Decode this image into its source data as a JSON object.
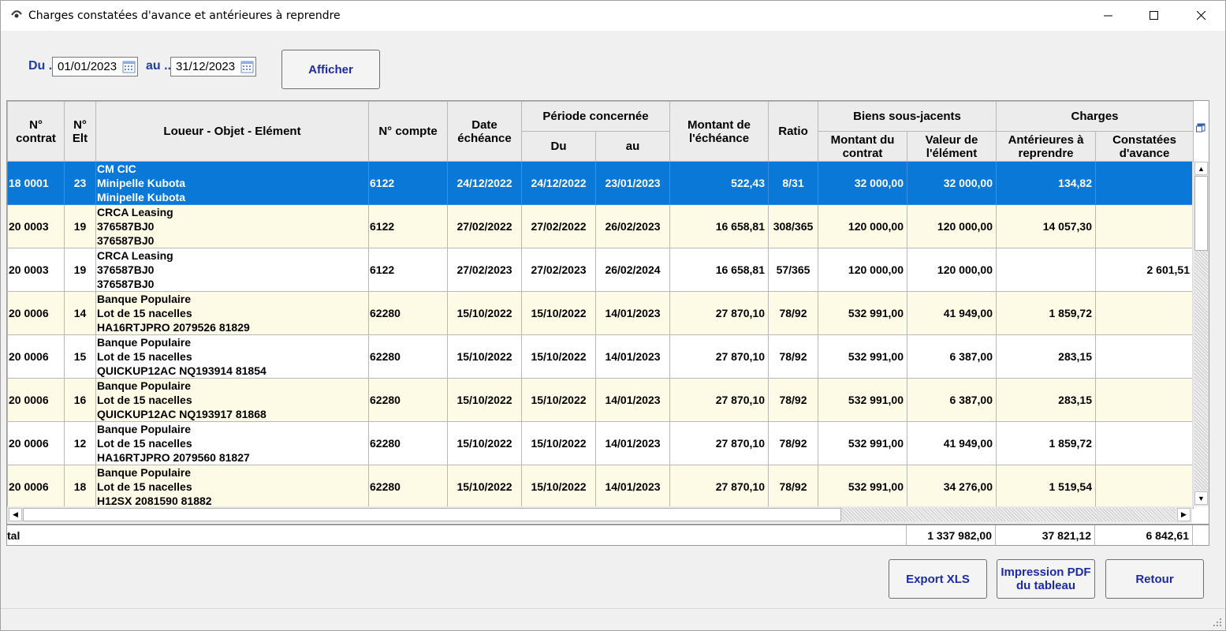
{
  "window": {
    "title": "Charges constatées d'avance et antérieures à reprendre"
  },
  "filters": {
    "du_label": "Du",
    "au_label": "au",
    "date_from": "01/01/2023",
    "date_to": "31/12/2023",
    "show_button": "Afficher"
  },
  "table": {
    "headers": {
      "contrat": "N° contrat",
      "elt": "N° Elt",
      "loueur": "Loueur - Objet - Elément",
      "compte": "N° compte",
      "date_echeance": "Date échéance",
      "periode_group": "Période concernée",
      "periode_du": "Du",
      "periode_au": "au",
      "montant_echeance": "Montant de l'échéance",
      "ratio": "Ratio",
      "biens_group": "Biens sous-jacents",
      "montant_contrat": "Montant du contrat",
      "valeur_element": "Valeur de l'élément",
      "charges_group": "Charges",
      "anterieures": "Antérieures à reprendre",
      "constatees": "Constatées d'avance"
    },
    "rows": [
      {
        "contrat": "18 0001",
        "elt": "23",
        "l1": "CM CIC",
        "l2": "Minipelle Kubota",
        "l3": "Minipelle Kubota",
        "compte": "6122",
        "date": "24/12/2022",
        "du": "24/12/2022",
        "au": "23/01/2023",
        "montant": "522,43",
        "ratio": "8/31",
        "mcontrat": "32 000,00",
        "valeur": "32 000,00",
        "ant": "134,82",
        "cons": ""
      },
      {
        "contrat": "20 0003",
        "elt": "19",
        "l1": "CRCA Leasing",
        "l2": "376587BJ0",
        "l3": "376587BJ0",
        "compte": "6122",
        "date": "27/02/2022",
        "du": "27/02/2022",
        "au": "26/02/2023",
        "montant": "16 658,81",
        "ratio": "308/365",
        "mcontrat": "120 000,00",
        "valeur": "120 000,00",
        "ant": "14 057,30",
        "cons": ""
      },
      {
        "contrat": "20 0003",
        "elt": "19",
        "l1": "CRCA Leasing",
        "l2": "376587BJ0",
        "l3": "376587BJ0",
        "compte": "6122",
        "date": "27/02/2023",
        "du": "27/02/2023",
        "au": "26/02/2024",
        "montant": "16 658,81",
        "ratio": "57/365",
        "mcontrat": "120 000,00",
        "valeur": "120 000,00",
        "ant": "",
        "cons": "2 601,51"
      },
      {
        "contrat": "20 0006",
        "elt": "14",
        "l1": "Banque Populaire",
        "l2": "Lot de 15 nacelles",
        "l3": "HA16RTJPRO 2079526 81829",
        "compte": "62280",
        "date": "15/10/2022",
        "du": "15/10/2022",
        "au": "14/01/2023",
        "montant": "27 870,10",
        "ratio": "78/92",
        "mcontrat": "532 991,00",
        "valeur": "41 949,00",
        "ant": "1 859,72",
        "cons": ""
      },
      {
        "contrat": "20 0006",
        "elt": "15",
        "l1": "Banque Populaire",
        "l2": "Lot de 15 nacelles",
        "l3": "QUICKUP12AC NQ193914 81854",
        "compte": "62280",
        "date": "15/10/2022",
        "du": "15/10/2022",
        "au": "14/01/2023",
        "montant": "27 870,10",
        "ratio": "78/92",
        "mcontrat": "532 991,00",
        "valeur": "6 387,00",
        "ant": "283,15",
        "cons": ""
      },
      {
        "contrat": "20 0006",
        "elt": "16",
        "l1": "Banque Populaire",
        "l2": "Lot de 15 nacelles",
        "l3": "QUICKUP12AC NQ193917 81868",
        "compte": "62280",
        "date": "15/10/2022",
        "du": "15/10/2022",
        "au": "14/01/2023",
        "montant": "27 870,10",
        "ratio": "78/92",
        "mcontrat": "532 991,00",
        "valeur": "6 387,00",
        "ant": "283,15",
        "cons": ""
      },
      {
        "contrat": "20 0006",
        "elt": "12",
        "l1": "Banque Populaire",
        "l2": "Lot de 15 nacelles",
        "l3": "HA16RTJPRO 2079560 81827",
        "compte": "62280",
        "date": "15/10/2022",
        "du": "15/10/2022",
        "au": "14/01/2023",
        "montant": "27 870,10",
        "ratio": "78/92",
        "mcontrat": "532 991,00",
        "valeur": "41 949,00",
        "ant": "1 859,72",
        "cons": ""
      },
      {
        "contrat": "20 0006",
        "elt": "18",
        "l1": "Banque Populaire",
        "l2": "Lot de 15 nacelles",
        "l3": "H12SX 2081590 81882",
        "compte": "62280",
        "date": "15/10/2022",
        "du": "15/10/2022",
        "au": "14/01/2023",
        "montant": "27 870,10",
        "ratio": "78/92",
        "mcontrat": "532 991,00",
        "valeur": "34 276,00",
        "ant": "1 519,54",
        "cons": ""
      }
    ]
  },
  "totals": {
    "label": "tal",
    "valeur": "1 337 982,00",
    "anterieures": "37 821,12",
    "constatees": "6 842,61"
  },
  "actions": {
    "export": "Export XLS",
    "print_line1": "Impression PDF",
    "print_line2": "du tableau",
    "back": "Retour"
  },
  "icons": [
    "app-icon",
    "minimize-icon",
    "maximize-icon",
    "close-icon",
    "calendar-icon",
    "column-chooser-icon",
    "resize-grip-icon"
  ]
}
